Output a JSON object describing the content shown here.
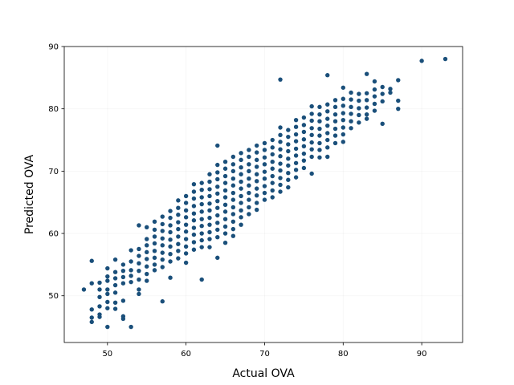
{
  "chart_data": {
    "type": "scatter",
    "xlabel": "Actual OVA",
    "ylabel": "Predicted OVA",
    "xlim": [
      44.5,
      95.2
    ],
    "ylim": [
      42.5,
      90
    ],
    "xticks": [
      50,
      60,
      70,
      80,
      90
    ],
    "yticks": [
      50,
      60,
      70,
      80,
      90
    ],
    "grid": true,
    "point_color": "#1a4f7a",
    "series": [
      {
        "points": [
          [
            47,
            51.0
          ],
          [
            48,
            55.6
          ],
          [
            48,
            52.0
          ],
          [
            48,
            47.8
          ],
          [
            48,
            46.5
          ],
          [
            48,
            45.8
          ],
          [
            49,
            52.1
          ],
          [
            49,
            51.0
          ],
          [
            49,
            49.8
          ],
          [
            49,
            48.3
          ],
          [
            49,
            47.0
          ],
          [
            49,
            46.6
          ],
          [
            50,
            54.4
          ],
          [
            50,
            53.1
          ],
          [
            50,
            52.4
          ],
          [
            50,
            51.0
          ],
          [
            50,
            50.3
          ],
          [
            50,
            49.0
          ],
          [
            50,
            48.0
          ],
          [
            50,
            45.0
          ],
          [
            51,
            55.8
          ],
          [
            51,
            53.8
          ],
          [
            51,
            52.8
          ],
          [
            51,
            51.7
          ],
          [
            51,
            50.5
          ],
          [
            51,
            48.9
          ],
          [
            51,
            47.9
          ],
          [
            52,
            55.0
          ],
          [
            52,
            54.0
          ],
          [
            52,
            53.0
          ],
          [
            52,
            52.0
          ],
          [
            52,
            49.2
          ],
          [
            52,
            46.7
          ],
          [
            52,
            46.3
          ],
          [
            53,
            57.3
          ],
          [
            53,
            55.5
          ],
          [
            53,
            54.1
          ],
          [
            53,
            53.2
          ],
          [
            53,
            52.2
          ],
          [
            53,
            45.0
          ],
          [
            54,
            61.3
          ],
          [
            54,
            57.5
          ],
          [
            54,
            56.4
          ],
          [
            54,
            55.2
          ],
          [
            54,
            54.0
          ],
          [
            54,
            52.6
          ],
          [
            54,
            51.0
          ],
          [
            54,
            50.3
          ],
          [
            55,
            61.0
          ],
          [
            55,
            59.1
          ],
          [
            55,
            58.1
          ],
          [
            55,
            57.0
          ],
          [
            55,
            55.9
          ],
          [
            55,
            54.7
          ],
          [
            55,
            53.5
          ],
          [
            55,
            52.4
          ],
          [
            56,
            61.9
          ],
          [
            56,
            60.6
          ],
          [
            56,
            59.5
          ],
          [
            56,
            58.4
          ],
          [
            56,
            57.2
          ],
          [
            56,
            56.1
          ],
          [
            56,
            55.0
          ],
          [
            56,
            54.1
          ],
          [
            57,
            62.7
          ],
          [
            57,
            61.5
          ],
          [
            57,
            60.4
          ],
          [
            57,
            59.2
          ],
          [
            57,
            58.1
          ],
          [
            57,
            56.9
          ],
          [
            57,
            55.8
          ],
          [
            57,
            54.6
          ],
          [
            57,
            49.1
          ],
          [
            58,
            63.6
          ],
          [
            58,
            62.5
          ],
          [
            58,
            61.3
          ],
          [
            58,
            60.2
          ],
          [
            58,
            59.0
          ],
          [
            58,
            57.9
          ],
          [
            58,
            56.7
          ],
          [
            58,
            55.5
          ],
          [
            58,
            52.9
          ],
          [
            59,
            65.3
          ],
          [
            59,
            64.1
          ],
          [
            59,
            63.0
          ],
          [
            59,
            61.8
          ],
          [
            59,
            60.7
          ],
          [
            59,
            59.5
          ],
          [
            59,
            58.3
          ],
          [
            59,
            57.2
          ],
          [
            59,
            56.0
          ],
          [
            60,
            66.0
          ],
          [
            60,
            64.9
          ],
          [
            60,
            63.7
          ],
          [
            60,
            62.6
          ],
          [
            60,
            61.4
          ],
          [
            60,
            60.3
          ],
          [
            60,
            59.1
          ],
          [
            60,
            57.9
          ],
          [
            60,
            56.8
          ],
          [
            60,
            55.3
          ],
          [
            61,
            67.9
          ],
          [
            61,
            66.7
          ],
          [
            61,
            65.6
          ],
          [
            61,
            64.4
          ],
          [
            61,
            63.2
          ],
          [
            61,
            62.1
          ],
          [
            61,
            60.9
          ],
          [
            61,
            59.8
          ],
          [
            61,
            58.6
          ],
          [
            61,
            57.4
          ],
          [
            62,
            68.1
          ],
          [
            62,
            67.0
          ],
          [
            62,
            65.8
          ],
          [
            62,
            64.7
          ],
          [
            62,
            63.5
          ],
          [
            62,
            62.3
          ],
          [
            62,
            61.2
          ],
          [
            62,
            60.0
          ],
          [
            62,
            58.9
          ],
          [
            62,
            57.8
          ],
          [
            62,
            52.6
          ],
          [
            63,
            69.5
          ],
          [
            63,
            68.3
          ],
          [
            63,
            67.1
          ],
          [
            63,
            66.0
          ],
          [
            63,
            64.8
          ],
          [
            63,
            63.7
          ],
          [
            63,
            62.5
          ],
          [
            63,
            61.4
          ],
          [
            63,
            60.2
          ],
          [
            63,
            59.1
          ],
          [
            63,
            57.8
          ],
          [
            64,
            74.1
          ],
          [
            64,
            71.0
          ],
          [
            64,
            69.8
          ],
          [
            64,
            68.7
          ],
          [
            64,
            67.5
          ],
          [
            64,
            66.4
          ],
          [
            64,
            65.2
          ],
          [
            64,
            64.1
          ],
          [
            64,
            62.9
          ],
          [
            64,
            61.7
          ],
          [
            64,
            60.6
          ],
          [
            64,
            59.4
          ],
          [
            64,
            56.1
          ],
          [
            65,
            71.5
          ],
          [
            65,
            70.4
          ],
          [
            65,
            69.2
          ],
          [
            65,
            68.1
          ],
          [
            65,
            66.9
          ],
          [
            65,
            65.8
          ],
          [
            65,
            64.6
          ],
          [
            65,
            63.5
          ],
          [
            65,
            62.3
          ],
          [
            65,
            61.1
          ],
          [
            65,
            60.0
          ],
          [
            65,
            58.5
          ],
          [
            66,
            72.3
          ],
          [
            66,
            71.1
          ],
          [
            66,
            70.0
          ],
          [
            66,
            68.8
          ],
          [
            66,
            67.7
          ],
          [
            66,
            66.5
          ],
          [
            66,
            65.4
          ],
          [
            66,
            64.2
          ],
          [
            66,
            63.1
          ],
          [
            66,
            61.9
          ],
          [
            66,
            60.7
          ],
          [
            66,
            59.6
          ],
          [
            67,
            72.9
          ],
          [
            67,
            71.8
          ],
          [
            67,
            70.6
          ],
          [
            67,
            69.5
          ],
          [
            67,
            68.3
          ],
          [
            67,
            67.2
          ],
          [
            67,
            66.0
          ],
          [
            67,
            64.9
          ],
          [
            67,
            63.7
          ],
          [
            67,
            62.6
          ],
          [
            67,
            61.4
          ],
          [
            68,
            73.4
          ],
          [
            68,
            72.3
          ],
          [
            68,
            71.1
          ],
          [
            68,
            70.0
          ],
          [
            68,
            68.8
          ],
          [
            68,
            67.7
          ],
          [
            68,
            66.5
          ],
          [
            68,
            65.4
          ],
          [
            68,
            64.2
          ],
          [
            68,
            63.1
          ],
          [
            69,
            74.1
          ],
          [
            69,
            73.0
          ],
          [
            69,
            71.8
          ],
          [
            69,
            70.7
          ],
          [
            69,
            69.5
          ],
          [
            69,
            68.4
          ],
          [
            69,
            67.2
          ],
          [
            69,
            66.1
          ],
          [
            69,
            64.9
          ],
          [
            69,
            63.8
          ],
          [
            70,
            74.5
          ],
          [
            70,
            73.4
          ],
          [
            70,
            72.2
          ],
          [
            70,
            71.1
          ],
          [
            70,
            69.9
          ],
          [
            70,
            68.8
          ],
          [
            70,
            67.6
          ],
          [
            70,
            66.5
          ],
          [
            70,
            65.4
          ],
          [
            71,
            75.0
          ],
          [
            71,
            73.8
          ],
          [
            71,
            72.7
          ],
          [
            71,
            71.5
          ],
          [
            71,
            70.4
          ],
          [
            71,
            69.2
          ],
          [
            71,
            68.1
          ],
          [
            71,
            66.9
          ],
          [
            71,
            65.8
          ],
          [
            72,
            84.7
          ],
          [
            72,
            77.0
          ],
          [
            72,
            75.8
          ],
          [
            72,
            74.7
          ],
          [
            72,
            73.5
          ],
          [
            72,
            72.4
          ],
          [
            72,
            71.2
          ],
          [
            72,
            70.1
          ],
          [
            72,
            68.9
          ],
          [
            72,
            67.8
          ],
          [
            72,
            66.7
          ],
          [
            73,
            76.6
          ],
          [
            73,
            75.5
          ],
          [
            73,
            74.3
          ],
          [
            73,
            73.2
          ],
          [
            73,
            72.0
          ],
          [
            73,
            70.9
          ],
          [
            73,
            69.7
          ],
          [
            73,
            68.6
          ],
          [
            73,
            67.4
          ],
          [
            74,
            78.2
          ],
          [
            74,
            77.1
          ],
          [
            74,
            75.9
          ],
          [
            74,
            74.8
          ],
          [
            74,
            73.6
          ],
          [
            74,
            72.5
          ],
          [
            74,
            71.3
          ],
          [
            74,
            70.2
          ],
          [
            74,
            69.0
          ],
          [
            75,
            78.6
          ],
          [
            75,
            77.4
          ],
          [
            75,
            76.3
          ],
          [
            75,
            75.1
          ],
          [
            75,
            74.0
          ],
          [
            75,
            72.8
          ],
          [
            75,
            71.7
          ],
          [
            75,
            70.5
          ],
          [
            76,
            80.4
          ],
          [
            76,
            79.2
          ],
          [
            76,
            78.1
          ],
          [
            76,
            76.9
          ],
          [
            76,
            75.8
          ],
          [
            76,
            74.6
          ],
          [
            76,
            73.5
          ],
          [
            76,
            72.3
          ],
          [
            76,
            69.6
          ],
          [
            77,
            80.3
          ],
          [
            77,
            79.1
          ],
          [
            77,
            78.0
          ],
          [
            77,
            76.8
          ],
          [
            77,
            75.7
          ],
          [
            77,
            74.5
          ],
          [
            77,
            73.4
          ],
          [
            77,
            72.2
          ],
          [
            78,
            85.4
          ],
          [
            78,
            80.7
          ],
          [
            78,
            79.6
          ],
          [
            78,
            78.4
          ],
          [
            78,
            77.3
          ],
          [
            78,
            76.1
          ],
          [
            78,
            75.0
          ],
          [
            78,
            73.8
          ],
          [
            78,
            72.3
          ],
          [
            79,
            81.4
          ],
          [
            79,
            80.3
          ],
          [
            79,
            79.1
          ],
          [
            79,
            78.0
          ],
          [
            79,
            76.8
          ],
          [
            79,
            75.7
          ],
          [
            79,
            74.5
          ],
          [
            80,
            83.4
          ],
          [
            80,
            81.6
          ],
          [
            80,
            80.5
          ],
          [
            80,
            79.3
          ],
          [
            80,
            78.2
          ],
          [
            80,
            77.0
          ],
          [
            80,
            75.9
          ],
          [
            80,
            74.7
          ],
          [
            81,
            82.6
          ],
          [
            81,
            81.5
          ],
          [
            81,
            80.3
          ],
          [
            81,
            79.2
          ],
          [
            81,
            78.0
          ],
          [
            81,
            76.9
          ],
          [
            82,
            82.4
          ],
          [
            82,
            81.3
          ],
          [
            82,
            80.1
          ],
          [
            82,
            79.0
          ],
          [
            82,
            77.8
          ],
          [
            83,
            85.6
          ],
          [
            83,
            82.5
          ],
          [
            83,
            81.4
          ],
          [
            83,
            80.2
          ],
          [
            83,
            79.1
          ],
          [
            83,
            78.4
          ],
          [
            84,
            84.4
          ],
          [
            84,
            83.1
          ],
          [
            84,
            82.0
          ],
          [
            84,
            80.8
          ],
          [
            84,
            79.7
          ],
          [
            85,
            83.5
          ],
          [
            85,
            82.4
          ],
          [
            85,
            81.2
          ],
          [
            85,
            77.6
          ],
          [
            86,
            83.2
          ],
          [
            86,
            82.6
          ],
          [
            87,
            84.6
          ],
          [
            87,
            81.3
          ],
          [
            87,
            80.0
          ],
          [
            90,
            87.7
          ],
          [
            93,
            88.0
          ]
        ]
      }
    ]
  }
}
